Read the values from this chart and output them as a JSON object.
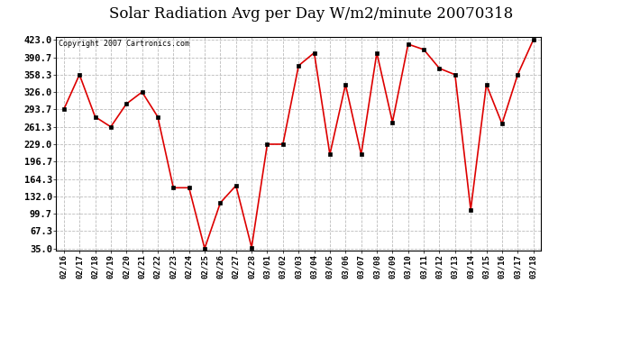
{
  "title": "Solar Radiation Avg per Day W/m2/minute 20070318",
  "copyright": "Copyright 2007 Cartronics.com",
  "dates": [
    "02/16",
    "02/17",
    "02/18",
    "02/19",
    "02/20",
    "02/21",
    "02/22",
    "02/23",
    "02/24",
    "02/25",
    "02/26",
    "02/27",
    "02/28",
    "03/01",
    "03/02",
    "03/03",
    "03/04",
    "03/05",
    "03/06",
    "03/07",
    "03/08",
    "03/09",
    "03/10",
    "03/11",
    "03/12",
    "03/13",
    "03/14",
    "03/15",
    "03/16",
    "03/17",
    "03/18"
  ],
  "values": [
    293.7,
    358.3,
    280.0,
    261.3,
    304.0,
    326.0,
    280.0,
    148.0,
    148.0,
    35.0,
    120.0,
    152.0,
    37.0,
    229.0,
    229.0,
    375.0,
    399.0,
    210.0,
    340.0,
    210.0,
    399.0,
    270.0,
    415.0,
    405.0,
    370.0,
    358.3,
    107.0,
    340.0,
    267.0,
    358.3,
    423.0
  ],
  "line_color": "#dd0000",
  "marker_color": "#000000",
  "bg_color": "#ffffff",
  "grid_color": "#bbbbbb",
  "title_fontsize": 12,
  "ylabel_values": [
    35.0,
    67.3,
    99.7,
    132.0,
    164.3,
    196.7,
    229.0,
    261.3,
    293.7,
    326.0,
    358.3,
    390.7,
    423.0
  ],
  "ymin": 35.0,
  "ymax": 423.0
}
